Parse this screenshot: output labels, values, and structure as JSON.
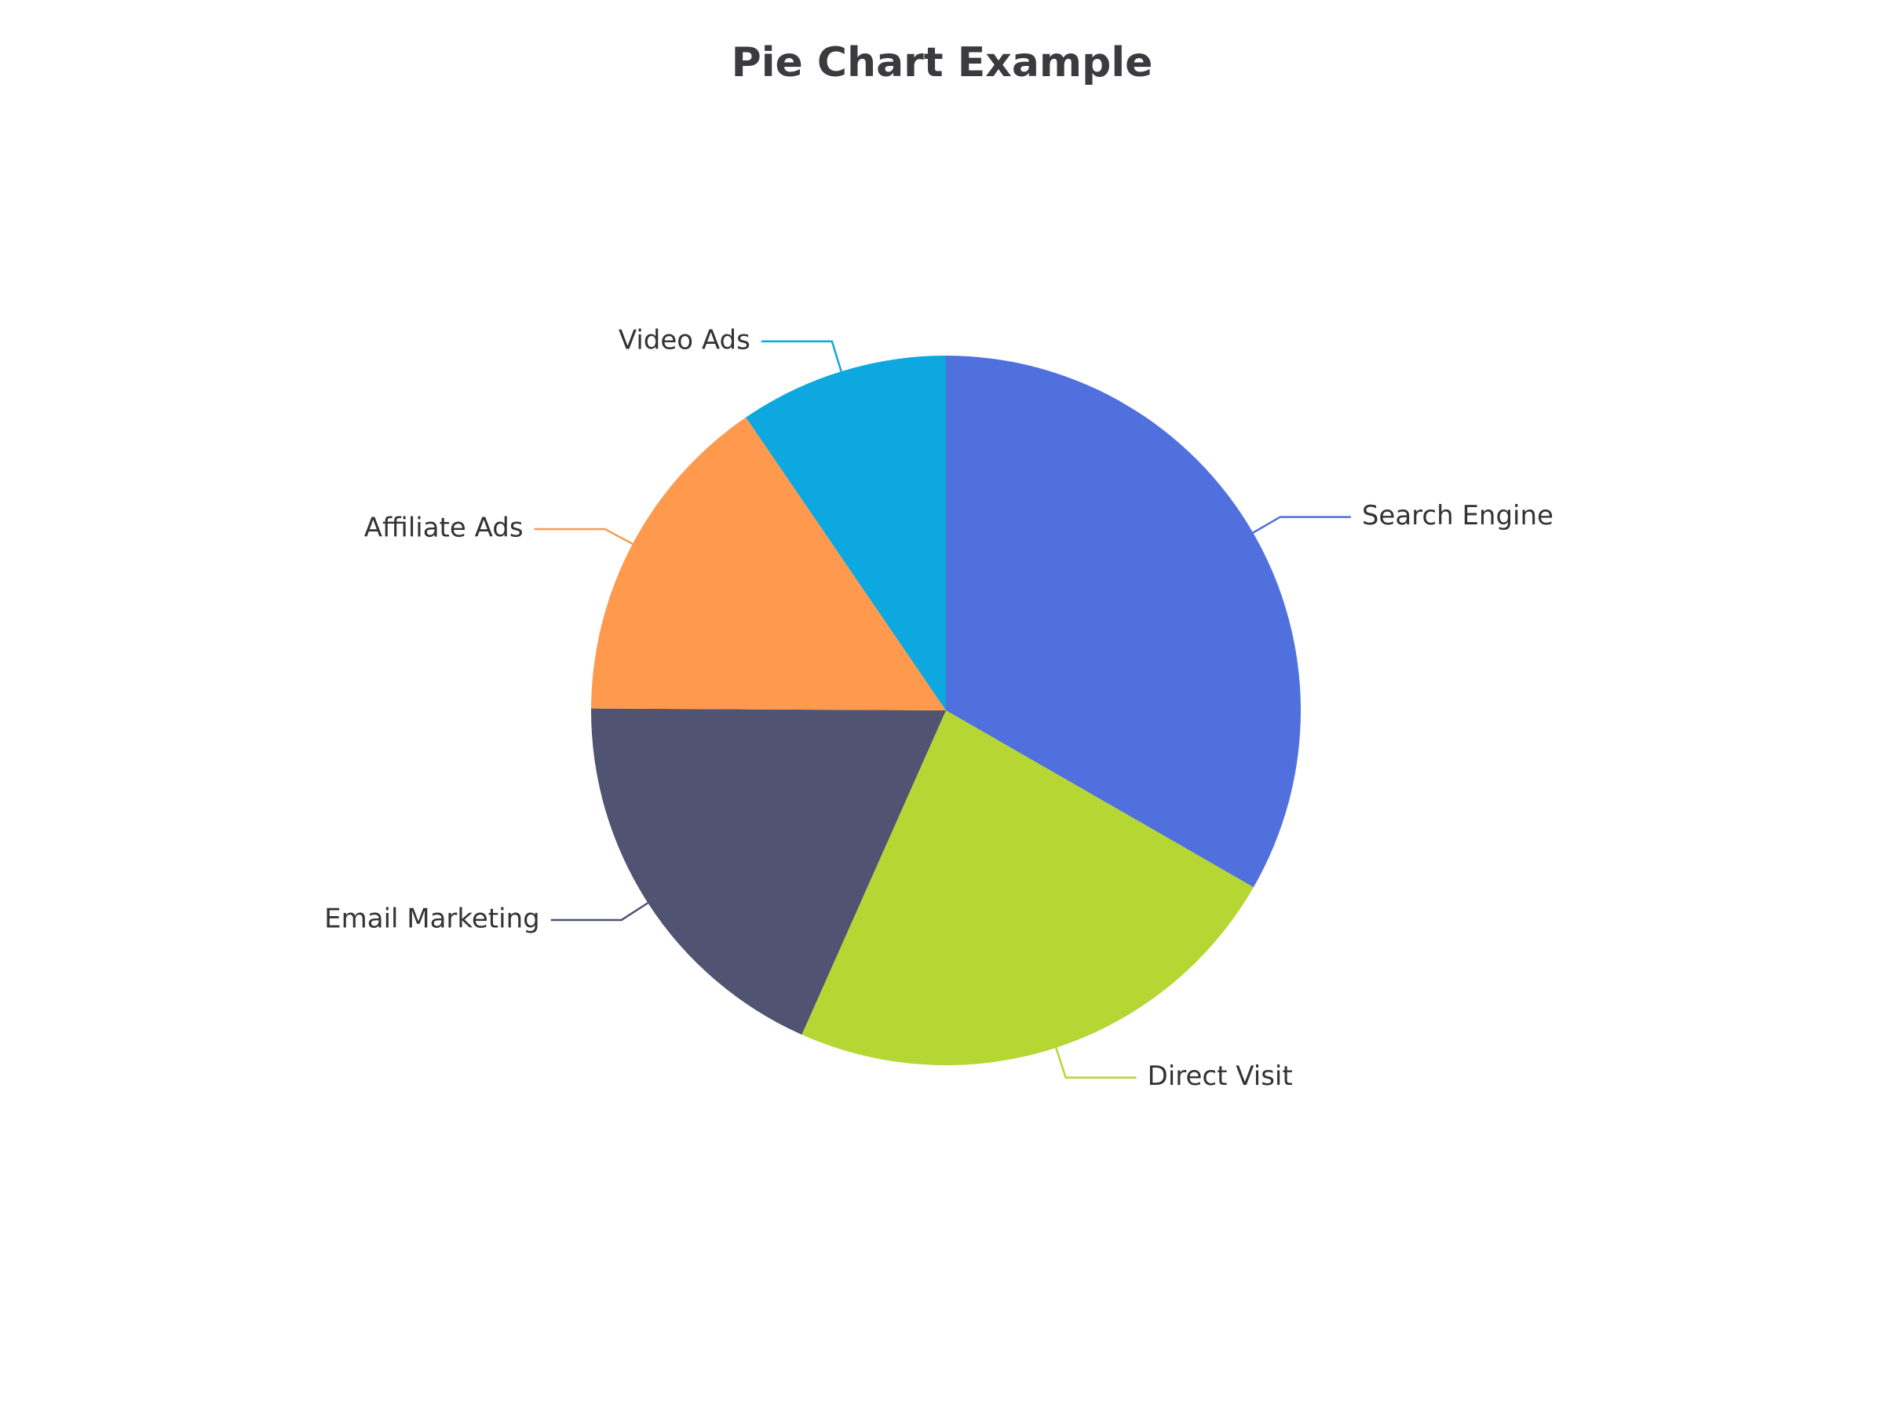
{
  "chart_data": {
    "type": "pie",
    "title": "Pie Chart Example",
    "slices": [
      {
        "label": "Search Engine",
        "value": 1048,
        "color": "#5070dd"
      },
      {
        "label": "Direct Visit",
        "value": 735,
        "color": "#b6d634"
      },
      {
        "label": "Email Marketing",
        "value": 580,
        "color": "#505372"
      },
      {
        "label": "Affiliate Ads",
        "value": 484,
        "color": "#ff994d"
      },
      {
        "label": "Video Ads",
        "value": 300,
        "color": "#0ca8df"
      }
    ],
    "start_angle": "top",
    "direction": "clockwise",
    "legend": "none"
  }
}
